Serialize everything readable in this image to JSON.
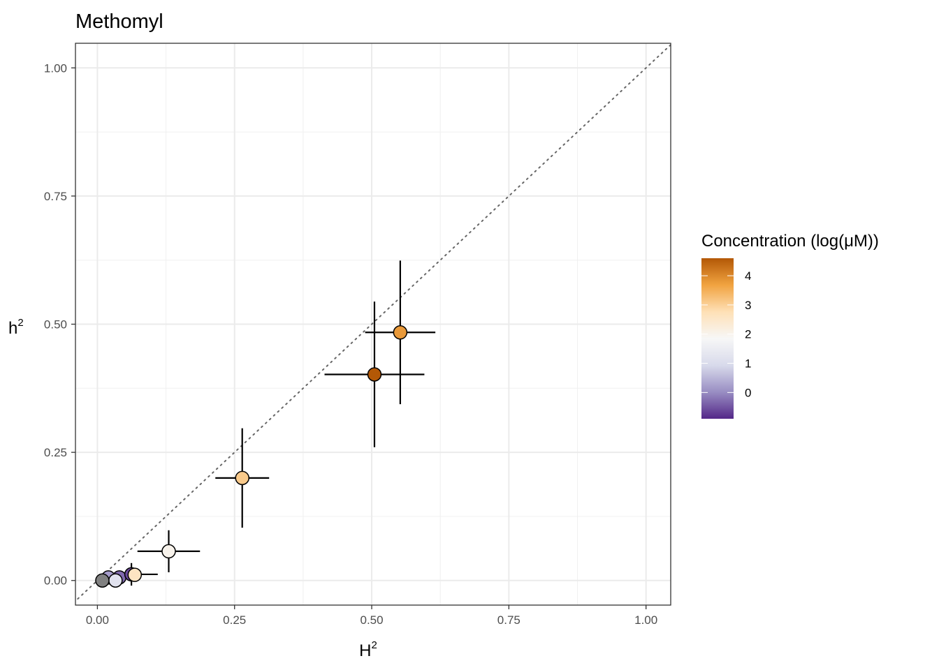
{
  "chart_data": {
    "type": "scatter",
    "title": "Methomyl",
    "xlabel": "H",
    "xlabel_sup": "2",
    "ylabel": "h",
    "ylabel_sup": "2",
    "xlim": [
      -0.04,
      1.045
    ],
    "ylim": [
      -0.048,
      1.048
    ],
    "x_ticks": [
      0.0,
      0.25,
      0.5,
      0.75,
      1.0
    ],
    "x_tick_labels": [
      "0.00",
      "0.25",
      "0.50",
      "0.75",
      "1.00"
    ],
    "y_ticks": [
      0.0,
      0.25,
      0.5,
      0.75,
      1.0
    ],
    "y_tick_labels": [
      "0.00",
      "0.25",
      "0.50",
      "0.75",
      "1.00"
    ],
    "grid": true,
    "reference_line": {
      "slope": 1,
      "intercept": 0,
      "style": "dotted",
      "color": "#666666"
    },
    "points": [
      {
        "x": 0.02,
        "y": 0.006,
        "x_err": 0.0,
        "y_err": 0.0,
        "concentration": 0.2
      },
      {
        "x": 0.04,
        "y": 0.006,
        "x_err": 0.03,
        "y_err": 0.006,
        "concentration": -0.3
      },
      {
        "x": 0.062,
        "y": 0.012,
        "x_err": 0.048,
        "y_err": 0.022,
        "concentration": -0.6
      },
      {
        "x": 0.068,
        "y": 0.011,
        "x_err": 0.0,
        "y_err": 0.0,
        "concentration": 2.6
      },
      {
        "x": 0.13,
        "y": 0.057,
        "x_err": 0.057,
        "y_err": 0.041,
        "concentration": 2.0
      },
      {
        "x": 0.264,
        "y": 0.2,
        "x_err": 0.049,
        "y_err": 0.097,
        "concentration": 3.1
      },
      {
        "x": 0.505,
        "y": 0.402,
        "x_err": 0.091,
        "y_err": 0.142,
        "concentration": 4.6
      },
      {
        "x": 0.552,
        "y": 0.484,
        "x_err": 0.064,
        "y_err": 0.14,
        "concentration": 3.8
      },
      {
        "x": 0.033,
        "y": 0.0,
        "x_err": 0.0,
        "y_err": 0.0,
        "concentration": 1.2
      },
      {
        "x": 0.009,
        "y": 0.0,
        "x_err": 0.0,
        "y_err": 0.0,
        "concentration": null
      }
    ],
    "na_color": "#808080",
    "legend": {
      "title": "Concentration (log(μM))",
      "position": "right",
      "range": [
        -0.9,
        4.6
      ],
      "ticks": [
        0,
        1,
        2,
        3,
        4
      ],
      "tick_labels": [
        "0",
        "1",
        "2",
        "3",
        "4"
      ],
      "colors": [
        "#542788",
        "#998ec3",
        "#d8daeb",
        "#f7f7f7",
        "#fee0b6",
        "#f1a340",
        "#b35806"
      ]
    }
  }
}
